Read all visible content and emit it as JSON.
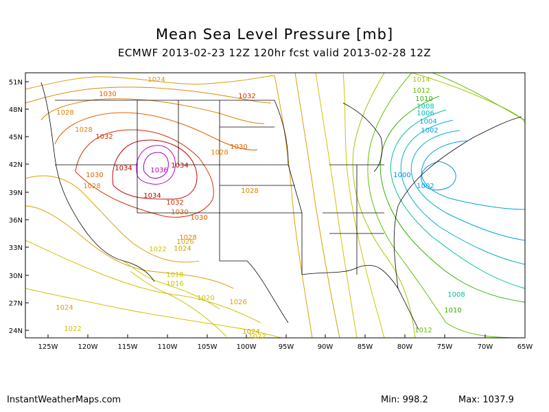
{
  "title": "Mean Sea Level Pressure [mb]",
  "subtitle": "ECMWF 2013-02-23 12Z 120hr fcst valid 2013-02-28 12Z",
  "lat_labels": [
    "51N",
    "48N",
    "45N",
    "42N",
    "39N",
    "36N",
    "33N",
    "30N",
    "27N",
    "24N"
  ],
  "lon_labels": [
    "125W",
    "120W",
    "115W",
    "110W",
    "105W",
    "100W",
    "95W",
    "90W",
    "85W",
    "80W",
    "75W",
    "70W",
    "65W"
  ],
  "contour_labels": [
    {
      "text": "1024",
      "color": "#d4a000"
    },
    {
      "text": "1030",
      "color": "#e06000"
    },
    {
      "text": "1032",
      "color": "#d03000"
    },
    {
      "text": "1028",
      "color": "#e08000"
    },
    {
      "text": "1028",
      "color": "#e08000"
    },
    {
      "text": "1032",
      "color": "#d03000"
    },
    {
      "text": "1028",
      "color": "#e08000"
    },
    {
      "text": "1030",
      "color": "#e06000"
    },
    {
      "text": "1034",
      "color": "#c00000"
    },
    {
      "text": "1036",
      "color": "#c000c0"
    },
    {
      "text": "1034",
      "color": "#c00000"
    },
    {
      "text": "1030",
      "color": "#e06000"
    },
    {
      "text": "1028",
      "color": "#e08000"
    },
    {
      "text": "1034",
      "color": "#c00000"
    },
    {
      "text": "1032",
      "color": "#d03000"
    },
    {
      "text": "1030",
      "color": "#e06000"
    },
    {
      "text": "1030",
      "color": "#e06000"
    },
    {
      "text": "1028",
      "color": "#e08000"
    },
    {
      "text": "1028",
      "color": "#e08000"
    },
    {
      "text": "1026",
      "color": "#e0a000"
    },
    {
      "text": "1022",
      "color": "#d0c000"
    },
    {
      "text": "1024",
      "color": "#d4a000"
    },
    {
      "text": "1018",
      "color": "#c8c800"
    },
    {
      "text": "1016",
      "color": "#c0c800"
    },
    {
      "text": "1020",
      "color": "#d0c000"
    },
    {
      "text": "1026",
      "color": "#e0a000"
    },
    {
      "text": "1024",
      "color": "#d4a000"
    },
    {
      "text": "1022",
      "color": "#d0c000"
    },
    {
      "text": "1024",
      "color": "#d4a000"
    },
    {
      "text": "1022",
      "color": "#d0c000"
    },
    {
      "text": "1014",
      "color": "#a0c800"
    },
    {
      "text": "1012",
      "color": "#60c000"
    },
    {
      "text": "1010",
      "color": "#30b000"
    },
    {
      "text": "1008",
      "color": "#00c0a0"
    },
    {
      "text": "1006",
      "color": "#00b0c0"
    },
    {
      "text": "1004",
      "color": "#00a8d0"
    },
    {
      "text": "1002",
      "color": "#00a0e0"
    },
    {
      "text": "1000",
      "color": "#0090e0"
    },
    {
      "text": "1002",
      "color": "#00a0e0"
    },
    {
      "text": "1008",
      "color": "#00c0a0"
    },
    {
      "text": "1010",
      "color": "#30b000"
    },
    {
      "text": "1012",
      "color": "#60c000"
    }
  ],
  "footer": {
    "source": "InstantWeatherMaps.com",
    "min": "Min:  998.2",
    "max": "Max: 1037.9"
  }
}
